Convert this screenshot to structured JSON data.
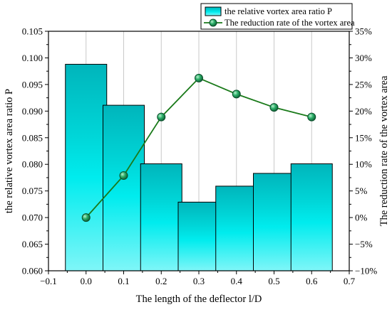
{
  "chart_data": {
    "type": "bar+line",
    "xlabel": "The length of the deflector l/D",
    "ylabel_left": "the relative vortex area ratio P",
    "ylabel_right": "The reduction rate of the vortex area",
    "x_ticks": [
      "−0.1",
      "0.0",
      "0.1",
      "0.2",
      "0.3",
      "0.4",
      "0.5",
      "0.6",
      "0.7"
    ],
    "x_tick_values": [
      -0.1,
      0.0,
      0.1,
      0.2,
      0.3,
      0.4,
      0.5,
      0.6,
      0.7
    ],
    "xlim": [
      -0.1,
      0.7
    ],
    "y_left_ticks": [
      "0.060",
      "0.065",
      "0.070",
      "0.075",
      "0.080",
      "0.085",
      "0.090",
      "0.095",
      "0.100",
      "0.105"
    ],
    "y_left_tick_values": [
      0.06,
      0.065,
      0.07,
      0.075,
      0.08,
      0.085,
      0.09,
      0.095,
      0.1,
      0.105
    ],
    "ylim_left": [
      0.06,
      0.105
    ],
    "y_right_ticks": [
      "−10%",
      "−5%",
      "0%",
      "5%",
      "10%",
      "15%",
      "20%",
      "25%",
      "30%",
      "35%"
    ],
    "y_right_tick_values": [
      -10,
      -5,
      0,
      5,
      10,
      15,
      20,
      25,
      30,
      35
    ],
    "ylim_right": [
      -10,
      35
    ],
    "legend_position": "top-right",
    "grid": "vertical",
    "bar_series": {
      "name": "the relative vortex area ratio P",
      "x": [
        0.0,
        0.1,
        0.2,
        0.3,
        0.4,
        0.5,
        0.6
      ],
      "values": [
        0.0988,
        0.0911,
        0.0801,
        0.0729,
        0.0759,
        0.0783,
        0.0801
      ],
      "color": "#00c8cc"
    },
    "line_series": {
      "name": "The reduction rate of the vortex area",
      "x": [
        0.0,
        0.1,
        0.2,
        0.3,
        0.4,
        0.5,
        0.6
      ],
      "values": [
        0.0,
        7.9,
        18.9,
        26.2,
        23.2,
        20.7,
        18.9
      ],
      "color": "#1a7a1a",
      "marker_color": "#1b9a5a"
    }
  }
}
